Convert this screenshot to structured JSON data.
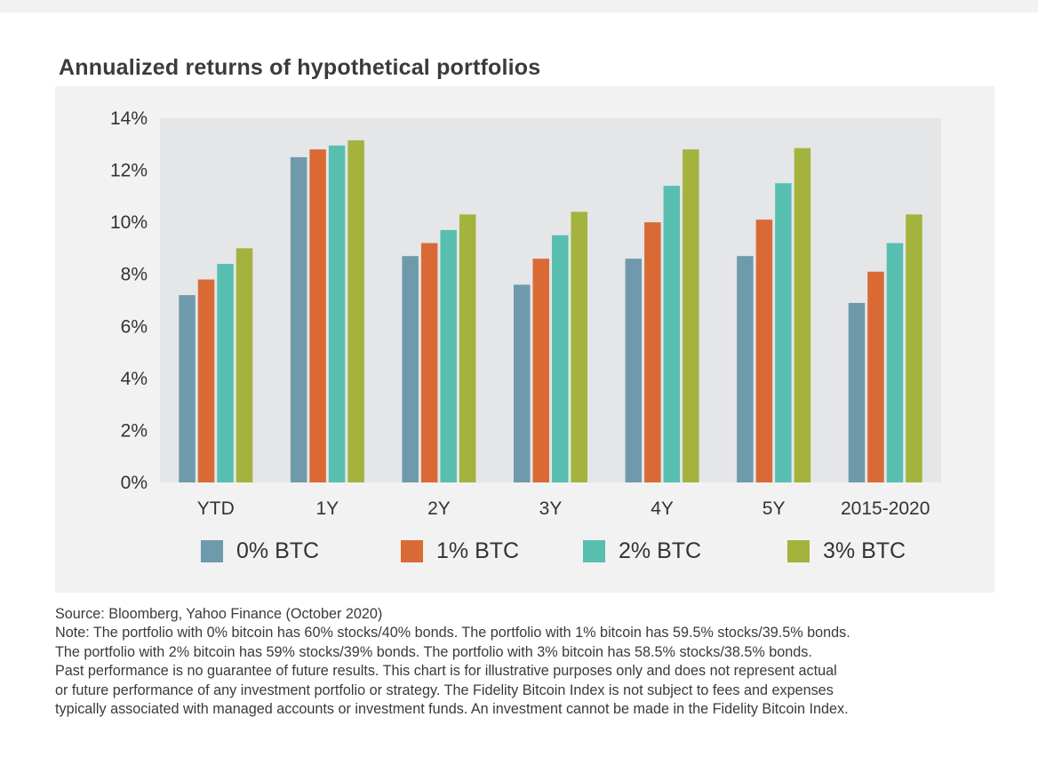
{
  "title": "Annualized returns of hypothetical portfolios",
  "chart_data": {
    "type": "bar",
    "categories": [
      "YTD",
      "1Y",
      "2Y",
      "3Y",
      "4Y",
      "5Y",
      "2015-2020"
    ],
    "series": [
      {
        "name": "0% BTC",
        "color": "#6f9aab",
        "values": [
          7.2,
          12.5,
          8.7,
          7.6,
          8.6,
          8.7,
          6.9
        ]
      },
      {
        "name": "1% BTC",
        "color": "#da6a35",
        "values": [
          7.8,
          12.8,
          9.2,
          8.6,
          10.0,
          10.1,
          8.1
        ]
      },
      {
        "name": "2% BTC",
        "color": "#58bfb0",
        "values": [
          8.4,
          12.95,
          9.7,
          9.5,
          11.4,
          11.5,
          9.2
        ]
      },
      {
        "name": "3% BTC",
        "color": "#a3b33e",
        "values": [
          9.0,
          13.15,
          10.3,
          10.4,
          12.8,
          12.85,
          10.3
        ]
      }
    ],
    "yticks": [
      "0%",
      "2%",
      "4%",
      "6%",
      "8%",
      "10%",
      "12%",
      "14%"
    ],
    "ylim": [
      0,
      14
    ],
    "plot_background": "#e5e6e8",
    "grid": false,
    "legend_position": "bottom"
  },
  "source": "Source: Bloomberg, Yahoo Finance (October 2020)",
  "note_lines": [
    "Note: The portfolio with 0% bitcoin has 60% stocks/40% bonds. The portfolio with 1% bitcoin has 59.5% stocks/39.5% bonds.",
    "The portfolio with 2% bitcoin has 59% stocks/39% bonds. The portfolio with 3% bitcoin has 58.5% stocks/38.5% bonds.",
    "Past performance is no guarantee of future results. This chart is for illustrative purposes only and does not represent actual",
    "or future performance of any investment portfolio or strategy. The Fidelity Bitcoin Index is not subject to fees and expenses",
    "typically associated with managed accounts or investment funds. An investment cannot be made in the Fidelity Bitcoin Index."
  ]
}
